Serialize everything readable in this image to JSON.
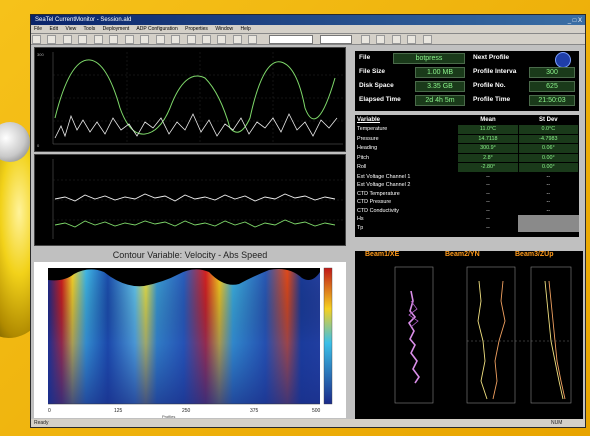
{
  "window": {
    "title": "SeaTel CurrentMonitor - Session.ald",
    "controls": "_ □ X"
  },
  "menu": [
    "File",
    "Edit",
    "View",
    "Tools",
    "Deployment",
    "ADP Configuration",
    "Properties",
    "Window",
    "Help"
  ],
  "info": {
    "file_label": "File",
    "file_value": "botpress",
    "next_profile_label": "Next Profile",
    "file_size_label": "File Size",
    "file_size_value": "1.00 MB",
    "profile_interval_label": "Profile Interva",
    "profile_interval_value": "300",
    "disk_space_label": "Disk Space",
    "disk_space_value": "3.35 GB",
    "profile_no_label": "Profile No.",
    "profile_no_value": "625",
    "elapsed_time_label": "Elapsed Time",
    "elapsed_time_value": "2d 4h 5m",
    "profile_time_label": "Profile Time",
    "profile_time_value": "21:50:03"
  },
  "stats": {
    "headers": [
      "Variable",
      "Mean",
      "St Dev"
    ],
    "rows": [
      {
        "name": "Temperature",
        "mean": "11.0°C",
        "sd": "0.0°C"
      },
      {
        "name": "Pressure",
        "mean": "14.7118",
        "sd": "-4.7983"
      },
      {
        "name": "Heading",
        "mean": "300.9°",
        "sd": "0.06°"
      },
      {
        "name": "Pitch",
        "mean": "2.8°",
        "sd": "0.00°"
      },
      {
        "name": "Roll",
        "mean": "-2.80°",
        "sd": "0.00°"
      },
      {
        "name": "Ext Voltage Channel 1",
        "mean": "--",
        "sd": "--"
      },
      {
        "name": "Ext Voltage Channel 2",
        "mean": "--",
        "sd": "--"
      },
      {
        "name": "CTD Temperature",
        "mean": "--",
        "sd": "--"
      },
      {
        "name": "CTD Pressure",
        "mean": "--",
        "sd": "--"
      },
      {
        "name": "CTD Conductivity",
        "mean": "--",
        "sd": "--"
      },
      {
        "name": "Hs",
        "mean": "--",
        "sd": ""
      },
      {
        "name": "Tp",
        "mean": "--",
        "sd": ""
      }
    ]
  },
  "contour": {
    "title": "Contour Variable: Velocity - Abs Speed",
    "x_ticks": [
      "0",
      "125",
      "250",
      "375",
      "500"
    ],
    "x_label": "Profiles"
  },
  "beams": {
    "beam1": "Beam1/XE",
    "beam2": "Beam2/YN",
    "beam3": "Beam3/ZUp"
  },
  "status": {
    "ready": "Ready",
    "num": "NUM"
  },
  "colors": {
    "window_title": "#0a246a",
    "plot_bg": "#000000",
    "value_bg": "#1a3a1a",
    "value_text": "#8cf58c",
    "beam_header": "#ff9a1a"
  }
}
